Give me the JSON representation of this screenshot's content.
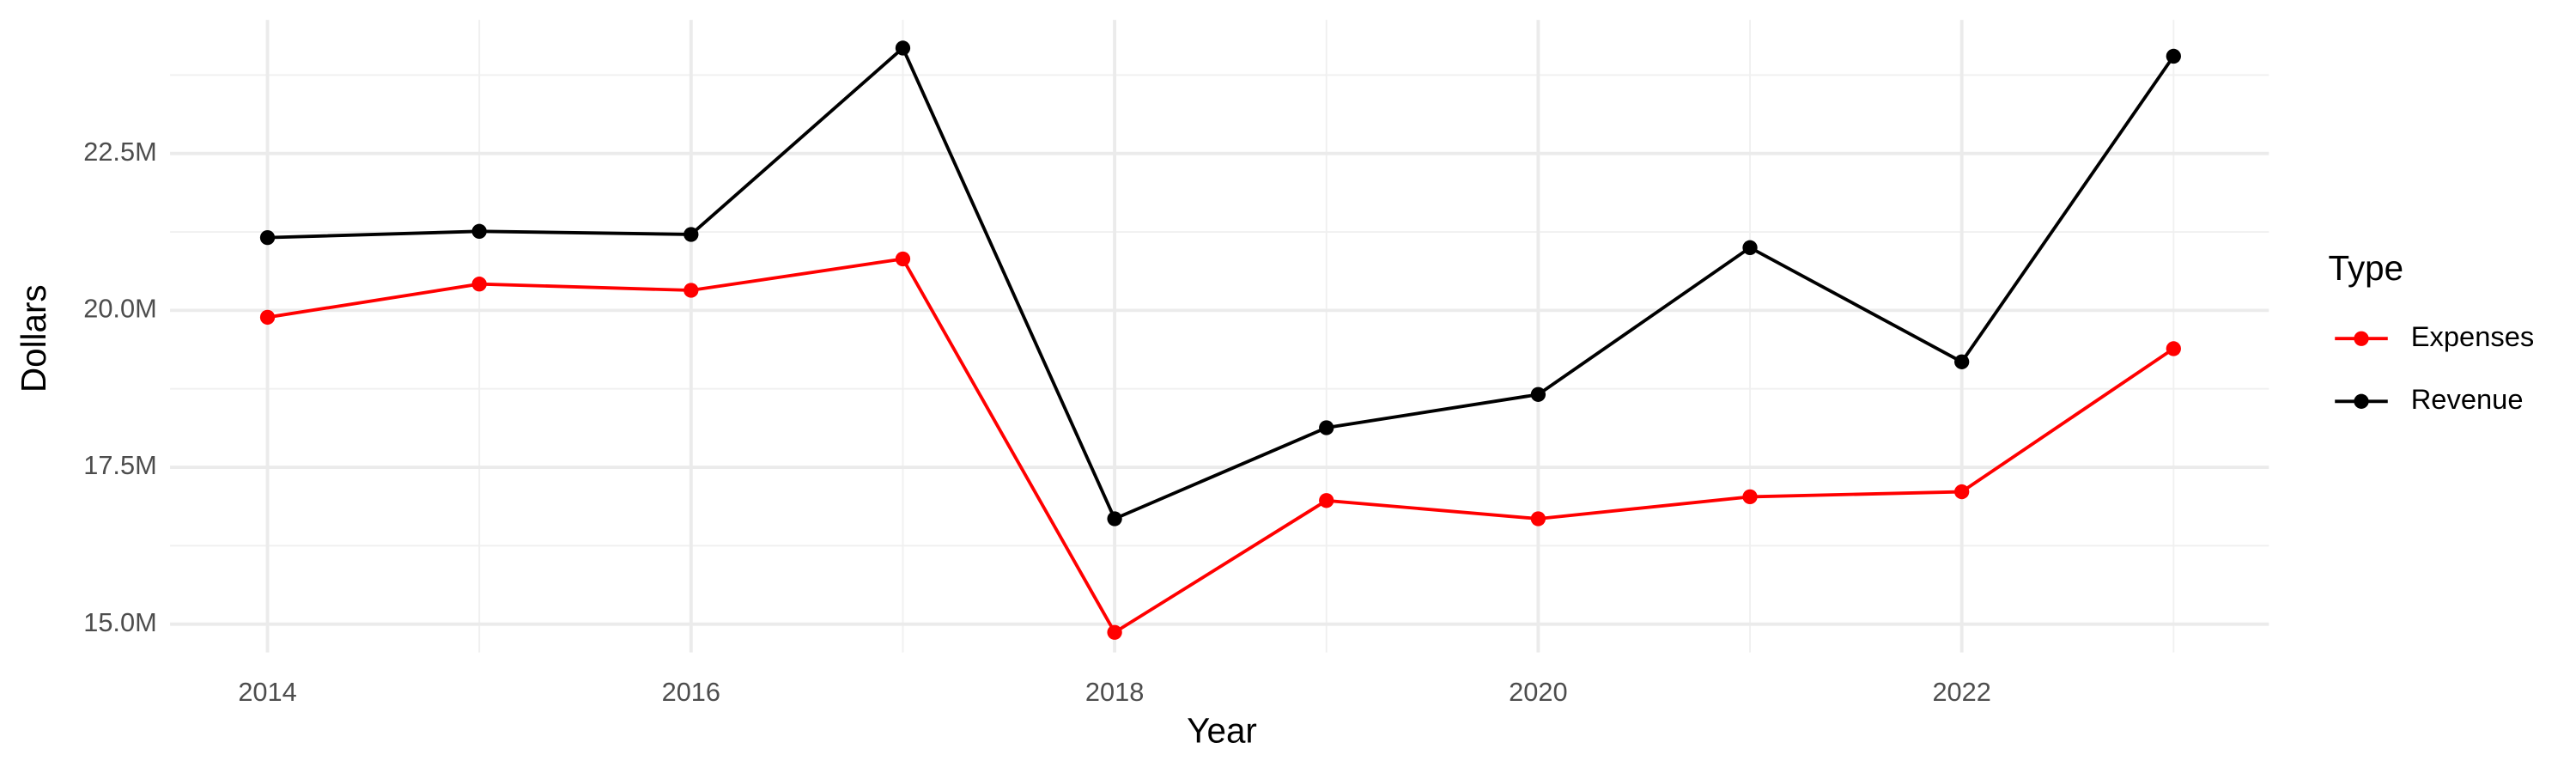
{
  "chart_data": {
    "type": "line",
    "x_label": "Year",
    "y_label": "Dollars",
    "legend_title": "Type",
    "legend_position": "right",
    "grid": true,
    "x": [
      2014,
      2015,
      2016,
      2017,
      2018,
      2019,
      2020,
      2021,
      2022,
      2023
    ],
    "series": [
      {
        "name": "Expenses",
        "color": "#ff0000",
        "values": [
          19890000,
          20420000,
          20320000,
          20820000,
          14870000,
          16970000,
          16680000,
          17030000,
          17110000,
          19390000
        ]
      },
      {
        "name": "Revenue",
        "color": "#000000",
        "values": [
          21160000,
          21260000,
          21210000,
          24180000,
          16680000,
          18130000,
          18660000,
          21000000,
          19180000,
          24050000
        ]
      }
    ],
    "xlim": [
      2013.54,
      2023.45
    ],
    "xticks": [
      2014,
      2016,
      2018,
      2020,
      2022
    ],
    "ylim": [
      14550000,
      24630000
    ],
    "yticks": [
      {
        "value": 15000000,
        "label": "15.0M"
      },
      {
        "value": 17500000,
        "label": "17.5M"
      },
      {
        "value": 20000000,
        "label": "20.0M"
      },
      {
        "value": 22500000,
        "label": "22.5M"
      }
    ]
  }
}
